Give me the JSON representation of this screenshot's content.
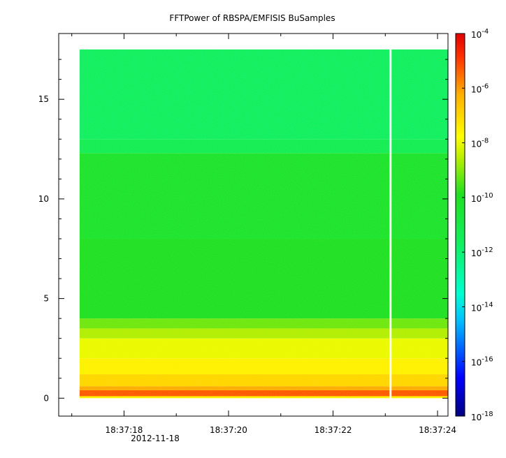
{
  "chart_data": {
    "type": "heatmap",
    "title": "FFTPower of RBSPA/EMFISIS  BuSamples",
    "xlabel": "",
    "ylabel": "",
    "x_ticks": [
      "18:37:18",
      "18:37:20",
      "18:37:22",
      "18:37:24"
    ],
    "x_date_label": "2012-11-18",
    "x_range_seconds": [
      16.75,
      24.2
    ],
    "data_x_range_seconds": [
      17.15,
      24.2
    ],
    "data_gap_seconds": 23.1,
    "y_ticks": [
      0,
      5,
      10,
      15
    ],
    "ylim": [
      -0.9,
      18.3
    ],
    "data_y_range": [
      0,
      17.5
    ],
    "colorbar": {
      "scale": "log",
      "range": [
        1e-18,
        0.0001
      ],
      "tick_labels": [
        {
          "base": "10",
          "exp": "-4",
          "value": -4
        },
        {
          "base": "10",
          "exp": "-6",
          "value": -6
        },
        {
          "base": "10",
          "exp": "-8",
          "value": -8
        },
        {
          "base": "10",
          "exp": "-10",
          "value": -10
        },
        {
          "base": "10",
          "exp": "-12",
          "value": -12
        },
        {
          "base": "10",
          "exp": "-14",
          "value": -14
        },
        {
          "base": "10",
          "exp": "-16",
          "value": -16
        },
        {
          "base": "10",
          "exp": "-18",
          "value": -18
        }
      ]
    },
    "power_bands_log10": [
      {
        "y_from": 0,
        "y_to": 0.1,
        "value": -7.5
      },
      {
        "y_from": 0.1,
        "y_to": 0.4,
        "value": -5.3
      },
      {
        "y_from": 0.4,
        "y_to": 0.6,
        "value": -6.2
      },
      {
        "y_from": 0.6,
        "y_to": 1.2,
        "value": -7.0
      },
      {
        "y_from": 1.2,
        "y_to": 2.0,
        "value": -7.5
      },
      {
        "y_from": 2.0,
        "y_to": 3.0,
        "value": -8.0
      },
      {
        "y_from": 3.0,
        "y_to": 3.5,
        "value": -8.6
      },
      {
        "y_from": 3.5,
        "y_to": 4.0,
        "value": -9.2
      },
      {
        "y_from": 4.0,
        "y_to": 8.0,
        "value": -10.0
      },
      {
        "y_from": 8.0,
        "y_to": 12.3,
        "value": -10.3
      },
      {
        "y_from": 12.3,
        "y_to": 13.0,
        "value": -11.4
      },
      {
        "y_from": 13.0,
        "y_to": 17.5,
        "value": -11.7
      }
    ]
  }
}
